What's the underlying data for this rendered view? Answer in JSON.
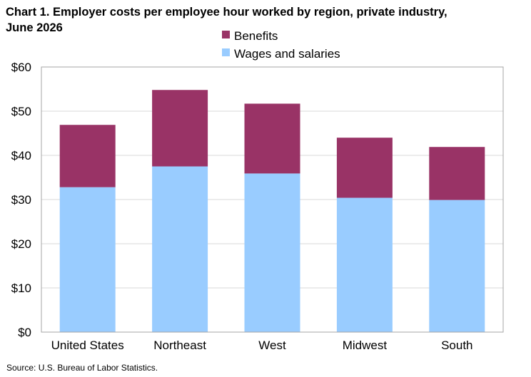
{
  "chart_data": {
    "type": "bar",
    "stacked": true,
    "title_lines": [
      "Chart 1. Employer costs per employee hour worked by region, private industry,",
      "June 2026"
    ],
    "categories": [
      "United States",
      "Northeast",
      "West",
      "Midwest",
      "South"
    ],
    "series": [
      {
        "name": "Wages and salaries",
        "color": "#99ccff",
        "values": [
          32.8,
          37.5,
          35.9,
          30.4,
          29.9
        ]
      },
      {
        "name": "Benefits",
        "color": "#993366",
        "values": [
          14.1,
          17.3,
          15.8,
          13.6,
          12.0
        ]
      }
    ],
    "legend_order": [
      "Benefits",
      "Wages and salaries"
    ],
    "ylim": [
      0,
      60
    ],
    "yticks": [
      0,
      10,
      20,
      30,
      40,
      50,
      60
    ],
    "ytick_labels": [
      "$0",
      "$10",
      "$20",
      "$30",
      "$40",
      "$50",
      "$60"
    ],
    "grid": true,
    "legend_position": "top-center",
    "source": "Source: U.S. Bureau of Labor Statistics."
  }
}
